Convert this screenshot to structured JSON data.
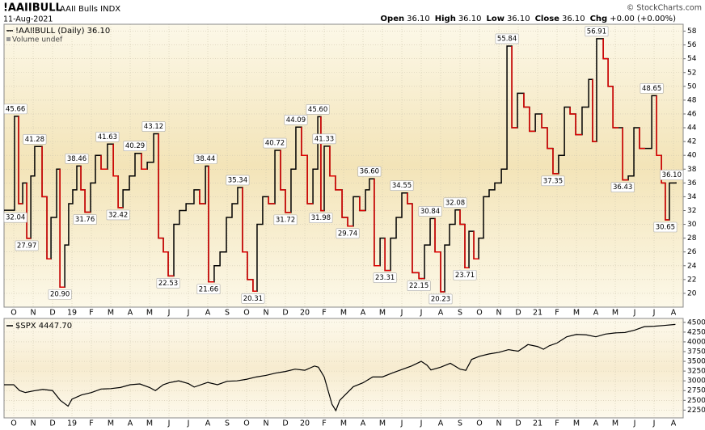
{
  "header": {
    "symbol": "!AAIIBULL",
    "name": "AAII Bulls INDX",
    "date": "11-Aug-2021",
    "copyright": "© StockCharts.com",
    "quote": [
      {
        "label": "Open",
        "value": "36.10"
      },
      {
        "label": "High",
        "value": "36.10"
      },
      {
        "label": "Low",
        "value": "36.10"
      },
      {
        "label": "Close",
        "value": "36.10"
      },
      {
        "label": "Chg",
        "value": "+0.00 (+0.00%)"
      }
    ]
  },
  "chart_data": [
    {
      "type": "step",
      "legend": "!AAIIBULL (Daily) 36.10",
      "volume_note": "Volume undef",
      "color": "#000000",
      "down_color": "#e00000",
      "grid": true,
      "xlim": [
        -0.5,
        34.5
      ],
      "ylim": [
        18,
        59
      ],
      "xticks": [
        {
          "value": 0,
          "label": "O"
        },
        {
          "value": 1,
          "label": "N"
        },
        {
          "value": 2,
          "label": "D"
        },
        {
          "value": 3,
          "label": "19"
        },
        {
          "value": 4,
          "label": "F"
        },
        {
          "value": 5,
          "label": "M"
        },
        {
          "value": 6,
          "label": "A"
        },
        {
          "value": 7,
          "label": "M"
        },
        {
          "value": 8,
          "label": "J"
        },
        {
          "value": 9,
          "label": "J"
        },
        {
          "value": 10,
          "label": "A"
        },
        {
          "value": 11,
          "label": "S"
        },
        {
          "value": 12,
          "label": "O"
        },
        {
          "value": 13,
          "label": "N"
        },
        {
          "value": 14,
          "label": "D"
        },
        {
          "value": 15,
          "label": "20"
        },
        {
          "value": 16,
          "label": "F"
        },
        {
          "value": 17,
          "label": "M"
        },
        {
          "value": 18,
          "label": "A"
        },
        {
          "value": 19,
          "label": "M"
        },
        {
          "value": 20,
          "label": "J"
        },
        {
          "value": 21,
          "label": "J"
        },
        {
          "value": 22,
          "label": "A"
        },
        {
          "value": 23,
          "label": "S"
        },
        {
          "value": 24,
          "label": "O"
        },
        {
          "value": 25,
          "label": "N"
        },
        {
          "value": 26,
          "label": "D"
        },
        {
          "value": 27,
          "label": "21"
        },
        {
          "value": 28,
          "label": "F"
        },
        {
          "value": 29,
          "label": "M"
        },
        {
          "value": 30,
          "label": "A"
        },
        {
          "value": 31,
          "label": "M"
        },
        {
          "value": 32,
          "label": "J"
        },
        {
          "value": 33,
          "label": "J"
        },
        {
          "value": 34,
          "label": "A"
        }
      ],
      "yticks": [
        20,
        22,
        24,
        26,
        28,
        30,
        32,
        34,
        36,
        38,
        40,
        42,
        44,
        46,
        48,
        50,
        52,
        54,
        56,
        58
      ],
      "x": [
        -0.5,
        0.04,
        0.25,
        0.46,
        0.67,
        0.88,
        1.08,
        1.46,
        1.71,
        1.92,
        2.21,
        2.38,
        2.63,
        2.83,
        3.04,
        3.25,
        3.46,
        3.67,
        3.96,
        4.21,
        4.5,
        4.83,
        5.13,
        5.38,
        5.63,
        5.96,
        6.25,
        6.58,
        6.88,
        7.21,
        7.46,
        7.71,
        7.96,
        8.25,
        8.54,
        8.88,
        9.29,
        9.58,
        9.88,
        10.04,
        10.33,
        10.63,
        10.96,
        11.25,
        11.54,
        11.79,
        12.04,
        12.33,
        12.54,
        12.83,
        13.13,
        13.46,
        13.75,
        14.0,
        14.29,
        14.54,
        14.83,
        15.13,
        15.42,
        15.67,
        15.83,
        16.0,
        16.29,
        16.58,
        16.92,
        17.21,
        17.5,
        17.83,
        18.13,
        18.33,
        18.58,
        18.88,
        19.13,
        19.42,
        19.71,
        20.0,
        20.29,
        20.54,
        20.88,
        21.17,
        21.46,
        21.71,
        22.0,
        22.21,
        22.46,
        22.75,
        23.0,
        23.25,
        23.46,
        23.71,
        23.96,
        24.21,
        24.5,
        24.79,
        25.13,
        25.42,
        25.67,
        25.96,
        26.29,
        26.58,
        26.88,
        27.21,
        27.5,
        27.79,
        28.08,
        28.38,
        28.67,
        28.96,
        29.29,
        29.63,
        29.83,
        30.04,
        30.38,
        30.63,
        30.88,
        31.17,
        31.38,
        31.67,
        31.96,
        32.25,
        32.54,
        32.88,
        33.13,
        33.38,
        33.58,
        33.79,
        34.13
      ],
      "values": [
        32.04,
        45.66,
        33,
        36,
        27.97,
        37,
        41.28,
        34,
        25,
        31,
        38,
        20.9,
        27,
        33,
        35,
        38.46,
        35,
        31.76,
        36,
        40,
        38,
        41.63,
        37,
        32.42,
        35,
        37,
        40.29,
        38,
        39,
        43.12,
        28,
        26,
        22.53,
        30,
        32,
        33,
        35,
        33,
        38.44,
        21.66,
        24,
        26,
        31,
        33,
        35.34,
        26,
        22,
        20.31,
        30,
        34,
        33,
        40.72,
        35,
        31.72,
        38,
        44.09,
        40,
        33,
        38,
        45.6,
        31.98,
        41.33,
        37,
        35,
        31,
        29.74,
        34,
        32,
        35,
        36.6,
        24,
        28,
        23.31,
        28,
        31,
        34.55,
        33,
        23,
        22.15,
        27,
        30.84,
        26,
        20.23,
        27,
        30,
        32.08,
        30,
        23.71,
        29,
        25,
        28,
        34,
        35,
        36,
        38,
        55.84,
        44,
        49,
        47,
        43.5,
        46,
        44,
        41,
        37.35,
        40,
        47,
        46,
        43,
        47,
        51,
        42,
        56.91,
        54,
        50,
        44,
        44,
        36.43,
        37,
        44,
        41,
        41,
        48.65,
        40,
        36,
        30.65,
        36,
        36.1
      ],
      "annotations": [
        {
          "x": -0.5,
          "value": 32.04
        },
        {
          "x": 0.04,
          "value": 45.66
        },
        {
          "x": 0.67,
          "value": 27.97
        },
        {
          "x": 1.08,
          "value": 41.28
        },
        {
          "x": 2.38,
          "value": 20.9,
          "label": "20.90"
        },
        {
          "x": 3.25,
          "value": 38.46
        },
        {
          "x": 3.67,
          "value": 31.76
        },
        {
          "x": 4.83,
          "value": 41.63
        },
        {
          "x": 5.38,
          "value": 32.42
        },
        {
          "x": 6.25,
          "value": 40.29
        },
        {
          "x": 7.21,
          "value": 43.12
        },
        {
          "x": 7.96,
          "value": 22.53
        },
        {
          "x": 9.88,
          "value": 38.44
        },
        {
          "x": 10.04,
          "value": 21.66
        },
        {
          "x": 11.54,
          "value": 35.34
        },
        {
          "x": 12.33,
          "value": 20.31
        },
        {
          "x": 13.46,
          "value": 40.72
        },
        {
          "x": 14.0,
          "value": 31.72
        },
        {
          "x": 14.54,
          "value": 44.09
        },
        {
          "x": 15.67,
          "value": 45.6,
          "label": "45.60"
        },
        {
          "x": 15.83,
          "value": 31.98
        },
        {
          "x": 16.0,
          "value": 41.33
        },
        {
          "x": 17.21,
          "value": 29.74
        },
        {
          "x": 18.33,
          "value": 36.6,
          "label": "36.60"
        },
        {
          "x": 19.13,
          "value": 23.31
        },
        {
          "x": 20.0,
          "value": 34.55
        },
        {
          "x": 20.88,
          "value": 22.15
        },
        {
          "x": 21.46,
          "value": 30.84
        },
        {
          "x": 22.0,
          "value": 20.23
        },
        {
          "x": 22.75,
          "value": 32.08
        },
        {
          "x": 23.25,
          "value": 23.71
        },
        {
          "x": 25.42,
          "value": 55.84
        },
        {
          "x": 27.79,
          "value": 37.35
        },
        {
          "x": 30.04,
          "value": 56.91
        },
        {
          "x": 31.38,
          "value": 36.43
        },
        {
          "x": 32.88,
          "value": 48.65
        },
        {
          "x": 33.58,
          "value": 30.65
        },
        {
          "x": 34.13,
          "value": 36.1,
          "label": "36.10"
        }
      ]
    },
    {
      "type": "line",
      "legend": "$SPX 4447.70",
      "color": "#000000",
      "grid": true,
      "xlim": [
        -0.5,
        34.5
      ],
      "ylim": [
        2050,
        4600
      ],
      "xticks": [
        {
          "value": 0,
          "label": "O"
        },
        {
          "value": 1,
          "label": "N"
        },
        {
          "value": 2,
          "label": "D"
        },
        {
          "value": 3,
          "label": "19"
        },
        {
          "value": 4,
          "label": "F"
        },
        {
          "value": 5,
          "label": "M"
        },
        {
          "value": 6,
          "label": "A"
        },
        {
          "value": 7,
          "label": "M"
        },
        {
          "value": 8,
          "label": "J"
        },
        {
          "value": 9,
          "label": "J"
        },
        {
          "value": 10,
          "label": "A"
        },
        {
          "value": 11,
          "label": "S"
        },
        {
          "value": 12,
          "label": "O"
        },
        {
          "value": 13,
          "label": "N"
        },
        {
          "value": 14,
          "label": "D"
        },
        {
          "value": 15,
          "label": "20"
        },
        {
          "value": 16,
          "label": "F"
        },
        {
          "value": 17,
          "label": "M"
        },
        {
          "value": 18,
          "label": "A"
        },
        {
          "value": 19,
          "label": "M"
        },
        {
          "value": 20,
          "label": "J"
        },
        {
          "value": 21,
          "label": "J"
        },
        {
          "value": 22,
          "label": "A"
        },
        {
          "value": 23,
          "label": "S"
        },
        {
          "value": 24,
          "label": "O"
        },
        {
          "value": 25,
          "label": "N"
        },
        {
          "value": 26,
          "label": "D"
        },
        {
          "value": 27,
          "label": "21"
        },
        {
          "value": 28,
          "label": "F"
        },
        {
          "value": 29,
          "label": "M"
        },
        {
          "value": 30,
          "label": "A"
        },
        {
          "value": 31,
          "label": "M"
        },
        {
          "value": 32,
          "label": "J"
        },
        {
          "value": 33,
          "label": "J"
        },
        {
          "value": 34,
          "label": "A"
        }
      ],
      "yticks": [
        2250,
        2500,
        2750,
        3000,
        3250,
        3500,
        3750,
        4000,
        4250,
        4500
      ],
      "x": [
        -0.5,
        0,
        0.3,
        0.6,
        1,
        1.5,
        2,
        2.4,
        2.8,
        3.0,
        3.5,
        4,
        4.5,
        5,
        5.5,
        6,
        6.5,
        7,
        7.3,
        7.7,
        8,
        8.5,
        9,
        9.3,
        10,
        10.5,
        11,
        11.5,
        12,
        12.5,
        13,
        13.5,
        14,
        14.5,
        15,
        15.5,
        15.7,
        16,
        16.2,
        16.4,
        16.6,
        16.8,
        17,
        17.5,
        18,
        18.5,
        19,
        19.5,
        20,
        20.5,
        21,
        21.3,
        21.5,
        22,
        22.5,
        23,
        23.3,
        23.6,
        24,
        24.5,
        25,
        25.5,
        26,
        26.5,
        27,
        27.3,
        27.6,
        28,
        28.5,
        29,
        29.5,
        30,
        30.5,
        31,
        31.5,
        32,
        32.5,
        33,
        33.5,
        34.1
      ],
      "values": [
        2900,
        2900,
        2750,
        2700,
        2740,
        2780,
        2750,
        2500,
        2350,
        2530,
        2640,
        2700,
        2790,
        2800,
        2830,
        2900,
        2920,
        2830,
        2750,
        2900,
        2950,
        3000,
        2930,
        2840,
        2960,
        2900,
        2990,
        3000,
        3040,
        3100,
        3140,
        3200,
        3240,
        3300,
        3270,
        3380,
        3350,
        3100,
        2750,
        2400,
        2237,
        2500,
        2600,
        2850,
        2950,
        3100,
        3100,
        3200,
        3290,
        3380,
        3500,
        3400,
        3280,
        3350,
        3450,
        3300,
        3270,
        3550,
        3630,
        3690,
        3730,
        3800,
        3760,
        3930,
        3880,
        3810,
        3900,
        3970,
        4130,
        4190,
        4180,
        4130,
        4200,
        4230,
        4240,
        4300,
        4390,
        4400,
        4420,
        4447.7
      ]
    }
  ]
}
